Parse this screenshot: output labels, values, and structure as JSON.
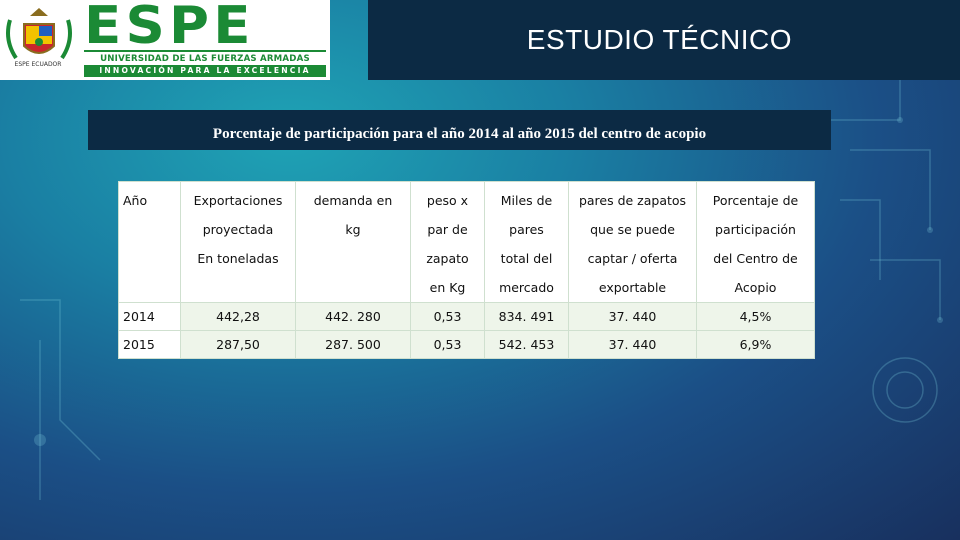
{
  "logo": {
    "seal_caption": "ESPE ECUADOR",
    "wordmark": "ESPE",
    "university": "UNIVERSIDAD DE LAS FUERZAS ARMADAS",
    "tagline": "INNOVACIÓN PARA LA EXCELENCIA"
  },
  "header": {
    "title": "ESTUDIO TÉCNICO"
  },
  "subtitle": "Porcentaje de participación para el año 2014 al año 2015 del centro de acopio",
  "table": {
    "headers": [
      [
        "Año"
      ],
      [
        "Exportaciones",
        "proyectada",
        "En toneladas"
      ],
      [
        "demanda en",
        "kg"
      ],
      [
        "peso x",
        "par de",
        "zapato",
        "en Kg"
      ],
      [
        "Miles de",
        "pares",
        "total del",
        "mercado"
      ],
      [
        "pares de zapatos",
        "que se puede",
        "captar / oferta",
        "exportable"
      ],
      [
        "Porcentaje de",
        "participación",
        "del Centro de",
        "Acopio"
      ]
    ],
    "rows": [
      [
        "2014",
        "442,28",
        "442. 280",
        "0,53",
        "834. 491",
        "37. 440",
        "4,5%"
      ],
      [
        "2015",
        "287,50",
        "287. 500",
        "0,53",
        "542. 453",
        "37. 440",
        "6,9%"
      ]
    ]
  },
  "colors": {
    "header_bar": "#0c2a44",
    "brand_green": "#1b8a35",
    "table_row_fill": "#eef5ea"
  }
}
